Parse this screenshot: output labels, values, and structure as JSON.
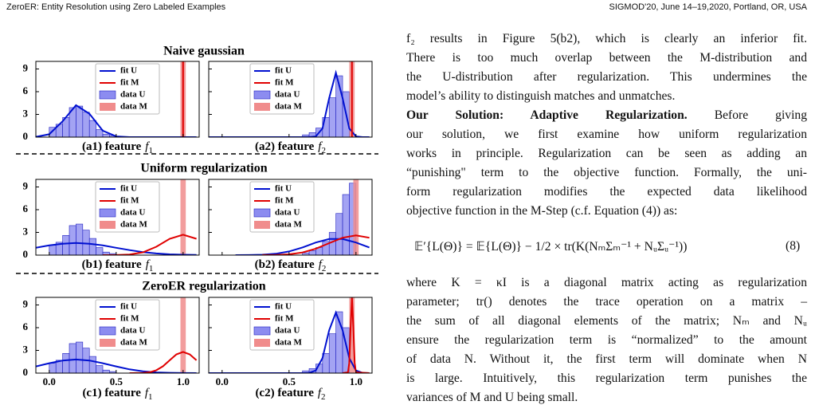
{
  "header": {
    "left": "ZeroER: Entity Resolution using Zero Labeled Examples",
    "right": "SIGMOD'20, June 14–19,2020, Portland, OR, USA"
  },
  "figure": {
    "row_titles": [
      "Naive gaussian",
      "Uniform regularization",
      "ZeroER regularization"
    ]
  },
  "chart_data": [
    {
      "type": "histogram",
      "caption": "(a1) feature",
      "feature": "f",
      "feature_sub": "1",
      "xlim": [
        -0.1,
        1.12
      ],
      "ylim": [
        0,
        10
      ],
      "yticks": [
        0,
        3,
        6,
        9
      ],
      "xticks": [
        0,
        0.5,
        1
      ],
      "series": [
        {
          "name": "fit U",
          "kind": "line",
          "color": "#0010d0",
          "x": [
            -0.1,
            0,
            0.1,
            0.2,
            0.3,
            0.4,
            0.5,
            0.6,
            0.7,
            0.8,
            0.9,
            1.0,
            1.1
          ],
          "values": [
            0.03,
            0.38,
            2.1,
            4.21,
            3.1,
            0.85,
            0.09,
            0,
            0,
            0,
            0,
            0,
            0
          ]
        },
        {
          "name": "fit M",
          "kind": "line",
          "color": "#e00000",
          "x": [
            1.0,
            1.0
          ],
          "values": [
            0,
            10
          ]
        },
        {
          "name": "data U",
          "kind": "bar",
          "color": "#8c8cf0",
          "bins": [
            0,
            0.05,
            0.1,
            0.15,
            0.2,
            0.25,
            0.3,
            0.35,
            0.4,
            0.45,
            0.5
          ],
          "values": [
            1.3,
            1.7,
            2.6,
            3.9,
            4.1,
            3.3,
            2.2,
            1.0,
            0.4,
            0.2
          ]
        },
        {
          "name": "data M",
          "kind": "bar",
          "color": "#f08c8c",
          "bins": [
            0.98,
            1.02
          ],
          "values": [
            10
          ]
        }
      ]
    },
    {
      "type": "histogram",
      "caption": "(a2) feature",
      "feature": "f",
      "feature_sub": "2",
      "xlim": [
        -0.1,
        1.12
      ],
      "ylim": [
        0,
        10
      ],
      "yticks": [
        0,
        3,
        6,
        9
      ],
      "xticks": [
        0,
        0.5,
        1
      ],
      "series": [
        {
          "name": "fit U",
          "kind": "line",
          "color": "#0010d0",
          "x": [
            -0.1,
            0.6,
            0.65,
            0.7,
            0.75,
            0.8,
            0.85,
            0.9,
            0.95,
            1.0,
            1.05,
            1.1
          ],
          "values": [
            0,
            0,
            0,
            0.09,
            1.15,
            5.16,
            8.5,
            5.16,
            1.15,
            0.09,
            0,
            0
          ]
        },
        {
          "name": "fit M",
          "kind": "line",
          "color": "#e00000",
          "x": [
            0.97,
            0.97
          ],
          "values": [
            0,
            10
          ]
        },
        {
          "name": "data U",
          "kind": "bar",
          "color": "#8c8cf0",
          "bins": [
            0.6,
            0.65,
            0.7,
            0.75,
            0.8,
            0.85,
            0.9,
            0.95
          ],
          "values": [
            0.3,
            0.6,
            1.2,
            2.6,
            5.2,
            8.1,
            6.0
          ]
        },
        {
          "name": "data M",
          "kind": "bar",
          "color": "#f08c8c",
          "bins": [
            0.95,
            0.99
          ],
          "values": [
            10
          ]
        }
      ]
    },
    {
      "type": "histogram",
      "caption": "(b1) feature",
      "feature": "f",
      "feature_sub": "1",
      "xlim": [
        -0.1,
        1.12
      ],
      "ylim": [
        0,
        10
      ],
      "yticks": [
        0,
        3,
        6,
        9
      ],
      "xticks": [
        0,
        0.5,
        1
      ],
      "series": [
        {
          "name": "fit U",
          "kind": "line",
          "color": "#0010d0",
          "x": [
            -0.1,
            0,
            0.1,
            0.2,
            0.3,
            0.4,
            0.5,
            0.6,
            0.7,
            0.8,
            0.9,
            1.0,
            1.1
          ],
          "values": [
            0.97,
            1.28,
            1.51,
            1.6,
            1.51,
            1.28,
            0.97,
            0.66,
            0.4,
            0.22,
            0.11,
            0.05,
            0.02
          ]
        },
        {
          "name": "fit M",
          "kind": "line",
          "color": "#e00000",
          "x": [
            0.4,
            0.5,
            0.6,
            0.7,
            0.8,
            0.9,
            1.0,
            1.1
          ],
          "values": [
            0,
            0.01,
            0.08,
            0.37,
            1.11,
            2.16,
            2.7,
            2.16
          ]
        },
        {
          "name": "data U",
          "kind": "bar",
          "color": "#8c8cf0",
          "bins": [
            0,
            0.05,
            0.1,
            0.15,
            0.2,
            0.25,
            0.3,
            0.35,
            0.4,
            0.45,
            0.5
          ],
          "values": [
            1.3,
            1.7,
            2.6,
            3.9,
            4.1,
            3.3,
            2.2,
            1.0,
            0.4,
            0.2
          ]
        },
        {
          "name": "data M",
          "kind": "bar",
          "color": "#f08c8c",
          "bins": [
            0.98,
            1.02
          ],
          "values": [
            10
          ]
        }
      ]
    },
    {
      "type": "histogram",
      "caption": "(b2) feature",
      "feature": "f",
      "feature_sub": "2",
      "xlim": [
        -0.1,
        1.12
      ],
      "ylim": [
        0,
        10
      ],
      "yticks": [
        0,
        3,
        6,
        9
      ],
      "xticks": [
        0,
        0.5,
        1
      ],
      "series": [
        {
          "name": "fit U",
          "kind": "line",
          "color": "#0010d0",
          "x": [
            0.1,
            0.2,
            0.3,
            0.4,
            0.5,
            0.6,
            0.7,
            0.8,
            0.9,
            1.0,
            1.1
          ],
          "values": [
            0,
            0.01,
            0.05,
            0.18,
            0.48,
            1.01,
            1.66,
            2.13,
            2.13,
            1.66,
            1.01
          ]
        },
        {
          "name": "fit M",
          "kind": "line",
          "color": "#e00000",
          "x": [
            0.3,
            0.4,
            0.5,
            0.6,
            0.7,
            0.8,
            0.9,
            1.0,
            1.1
          ],
          "values": [
            0.01,
            0.03,
            0.11,
            0.35,
            0.85,
            1.58,
            2.29,
            2.6,
            2.29
          ]
        },
        {
          "name": "data U",
          "kind": "bar",
          "color": "#8c8cf0",
          "bins": [
            0.6,
            0.65,
            0.7,
            0.75,
            0.8,
            0.85,
            0.9,
            0.95,
            1.0
          ],
          "values": [
            0.3,
            0.6,
            1.0,
            1.8,
            3.0,
            5.5,
            8.0,
            9.5
          ]
        },
        {
          "name": "data M",
          "kind": "bar",
          "color": "#f08c8c",
          "bins": [
            0.98,
            1.02
          ],
          "values": [
            10
          ]
        }
      ]
    },
    {
      "type": "histogram",
      "caption": "(c1) feature",
      "feature": "f",
      "feature_sub": "1",
      "xlim": [
        -0.1,
        1.12
      ],
      "ylim": [
        0,
        10
      ],
      "yticks": [
        0,
        3,
        6,
        9
      ],
      "xticks": [
        {
          "value": 0,
          "label": "0.0"
        },
        {
          "value": 0.5,
          "label": "0.5"
        },
        {
          "value": 1,
          "label": "1.0"
        }
      ],
      "series": [
        {
          "name": "fit U",
          "kind": "line",
          "color": "#0010d0",
          "x": [
            -0.1,
            0,
            0.1,
            0.2,
            0.3,
            0.4,
            0.5,
            0.6,
            0.7,
            0.8,
            0.9,
            1.0,
            1.1
          ],
          "values": [
            0.88,
            1.31,
            1.66,
            1.8,
            1.66,
            1.31,
            0.88,
            0.5,
            0.24,
            0.1,
            0.04,
            0.01,
            0
          ]
        },
        {
          "name": "fit M",
          "kind": "line",
          "color": "#e00000",
          "x": [
            0.6,
            0.65,
            0.7,
            0.75,
            0.8,
            0.85,
            0.9,
            0.95,
            1.0,
            1.05,
            1.1
          ],
          "values": [
            0,
            0.01,
            0.03,
            0.12,
            0.38,
            0.91,
            1.7,
            2.47,
            2.8,
            2.47,
            1.7
          ]
        },
        {
          "name": "data U",
          "kind": "bar",
          "color": "#8c8cf0",
          "bins": [
            0,
            0.05,
            0.1,
            0.15,
            0.2,
            0.25,
            0.3,
            0.35,
            0.4,
            0.45,
            0.5
          ],
          "values": [
            1.3,
            1.7,
            2.6,
            3.9,
            4.1,
            3.3,
            2.2,
            1.0,
            0.4,
            0.2
          ]
        },
        {
          "name": "data M",
          "kind": "bar",
          "color": "#f08c8c",
          "bins": [
            0.98,
            1.02
          ],
          "values": [
            10
          ]
        }
      ]
    },
    {
      "type": "histogram",
      "caption": "(c2) feature",
      "feature": "f",
      "feature_sub": "2",
      "xlim": [
        -0.1,
        1.12
      ],
      "ylim": [
        0,
        10
      ],
      "yticks": [
        0,
        3,
        6,
        9
      ],
      "xticks": [
        {
          "value": 0,
          "label": "0.0"
        },
        {
          "value": 0.5,
          "label": "0.5"
        },
        {
          "value": 1,
          "label": "1.0"
        }
      ],
      "series": [
        {
          "name": "fit U",
          "kind": "line",
          "color": "#0010d0",
          "x": [
            -0.1,
            0.6,
            0.65,
            0.7,
            0.75,
            0.8,
            0.85,
            0.9,
            0.95,
            1.0,
            1.05,
            1.1
          ],
          "values": [
            0,
            0,
            0.03,
            0.35,
            1.99,
            5.66,
            8,
            5.66,
            1.99,
            0.35,
            0.03,
            0
          ]
        },
        {
          "name": "fit M",
          "kind": "line",
          "color": "#e00000",
          "x": [
            0.9,
            0.94,
            0.95,
            0.96,
            0.97,
            0.98,
            0.99,
            1.0,
            1.1
          ],
          "values": [
            0,
            0.11,
            1.35,
            6.07,
            10,
            6.07,
            1.35,
            0.11,
            0
          ]
        },
        {
          "name": "data U",
          "kind": "bar",
          "color": "#8c8cf0",
          "bins": [
            0.6,
            0.65,
            0.7,
            0.75,
            0.8,
            0.85,
            0.9,
            0.95
          ],
          "values": [
            0.3,
            0.6,
            1.2,
            2.6,
            5.2,
            8.1,
            6.0
          ]
        },
        {
          "name": "data M",
          "kind": "bar",
          "color": "#f08c8c",
          "bins": [
            0.95,
            0.99
          ],
          "values": [
            10
          ]
        }
      ]
    }
  ],
  "text": {
    "lines": [
      "f₂ results in Figure 5(b2), which is clearly an inferior fit.",
      "There is too much overlap between the M-distribution and",
      "the U-distribution after regularization. This undermines the",
      "model’s ability to distinguish matches and unmatches.",
      {
        "lead": "Our Solution: Adaptive Regularization.",
        "text": " Before giving"
      },
      "our solution, we first examine how uniform regularization",
      "works in principle. Regularization can be seen as adding an",
      "“punishing\" term to the objective function. Formally, the uni-",
      "form regularization modifies the expected data likelihood",
      "objective function in the M-Step (c.f. Equation (4)) as:",
      " where K = κI is a diagonal matrix acting as regularization",
      "parameter; tr() denotes the trace operation on a matrix –",
      "the sum of all diagonal elements of the matrix; Nₘ and Nᵤ",
      "ensure the regularization term is “normalized” to the amount",
      "of data N. Without it, the first term will dominate when N",
      "is large. Intuitively, this regularization term punishes the",
      "variances of M and U being small."
    ],
    "equation": "𝔼′{L(Θ)} = 𝔼{L(Θ)} − 1/2 × tr(K(NₘΣₘ⁻¹ + NᵤΣᵤ⁻¹))",
    "equation_number": "(8)"
  }
}
